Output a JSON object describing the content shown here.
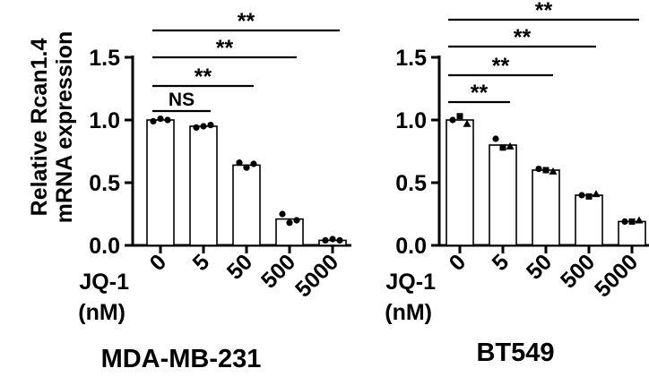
{
  "y_axis_label_line1": "Relative Rcan1.4",
  "y_axis_label_line2": "mRNA expression",
  "chart_data": [
    {
      "type": "bar",
      "title": "MDA-MB-231",
      "xlabel_line1": "JQ-1",
      "xlabel_line2": "(nM)",
      "categories": [
        "0",
        "5",
        "50",
        "500",
        "5000"
      ],
      "values": [
        1.0,
        0.95,
        0.64,
        0.21,
        0.04
      ],
      "points": [
        [
          0.99,
          1.01,
          1.0
        ],
        [
          0.94,
          0.95,
          0.96
        ],
        [
          0.66,
          0.62,
          0.65
        ],
        [
          0.25,
          0.18,
          0.2
        ],
        [
          0.04,
          0.05,
          0.04
        ]
      ],
      "ylim": [
        0,
        1.5
      ],
      "yticks": [
        "0.0",
        "0.5",
        "1.0",
        "1.5"
      ],
      "significance": [
        {
          "from": "0",
          "to": "5",
          "label": "NS"
        },
        {
          "from": "0",
          "to": "50",
          "label": "**"
        },
        {
          "from": "0",
          "to": "500",
          "label": "**"
        },
        {
          "from": "0",
          "to": "5000",
          "label": "**"
        }
      ]
    },
    {
      "type": "bar",
      "title": "BT549",
      "xlabel_line1": "JQ-1",
      "xlabel_line2": "(nM)",
      "categories": [
        "0",
        "5",
        "50",
        "500",
        "5000"
      ],
      "values": [
        1.0,
        0.8,
        0.6,
        0.4,
        0.19
      ],
      "points": [
        [
          1.0,
          1.03,
          0.97
        ],
        [
          0.85,
          0.78,
          0.79
        ],
        [
          0.61,
          0.6,
          0.59
        ],
        [
          0.4,
          0.39,
          0.41
        ],
        [
          0.19,
          0.19,
          0.2
        ]
      ],
      "ylim": [
        0,
        1.5
      ],
      "yticks": [
        "0.0",
        "0.5",
        "1.0",
        "1.5"
      ],
      "significance": [
        {
          "from": "0",
          "to": "5",
          "label": "**"
        },
        {
          "from": "0",
          "to": "50",
          "label": "**"
        },
        {
          "from": "0",
          "to": "500",
          "label": "**"
        },
        {
          "from": "0",
          "to": "5000",
          "label": "**"
        }
      ]
    }
  ]
}
